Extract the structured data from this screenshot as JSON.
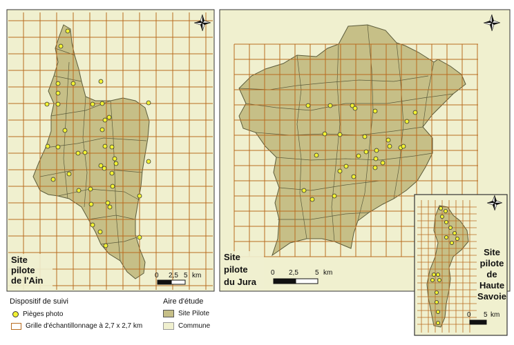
{
  "maps": {
    "ain": {
      "label_lines": [
        "Site",
        "pilote",
        "de l'Ain"
      ],
      "scale": {
        "t0": "0",
        "t1": "2,5",
        "t2": "5",
        "unit": "km"
      }
    },
    "jura": {
      "label_lines": [
        "Site",
        "pilote",
        "du Jura"
      ],
      "scale": {
        "t0": "0",
        "t1": "2,5",
        "t2": "5",
        "unit": "km"
      }
    },
    "savoie": {
      "label_lines": [
        "Site",
        "pilote",
        "de",
        "Haute",
        "Savoie"
      ],
      "scale": {
        "t0": "0",
        "t1": "5",
        "unit": "km"
      }
    }
  },
  "legend": {
    "dispositif_title": "Dispositif de suivi",
    "traps_label": "Pièges photo",
    "grid_label": "Grille d'échantillonnage à 2,7 x 2,7 km",
    "aire_title": "Aire d'étude",
    "site_label": "Site Pilote",
    "commune_label": "Commune"
  },
  "colors": {
    "background_commune": "#f0f0cf",
    "site_fill": "#c6bf87",
    "grid": "#b86b1f",
    "trap": "#f2f233"
  },
  "icons": [
    "north-arrow-icon"
  ]
}
